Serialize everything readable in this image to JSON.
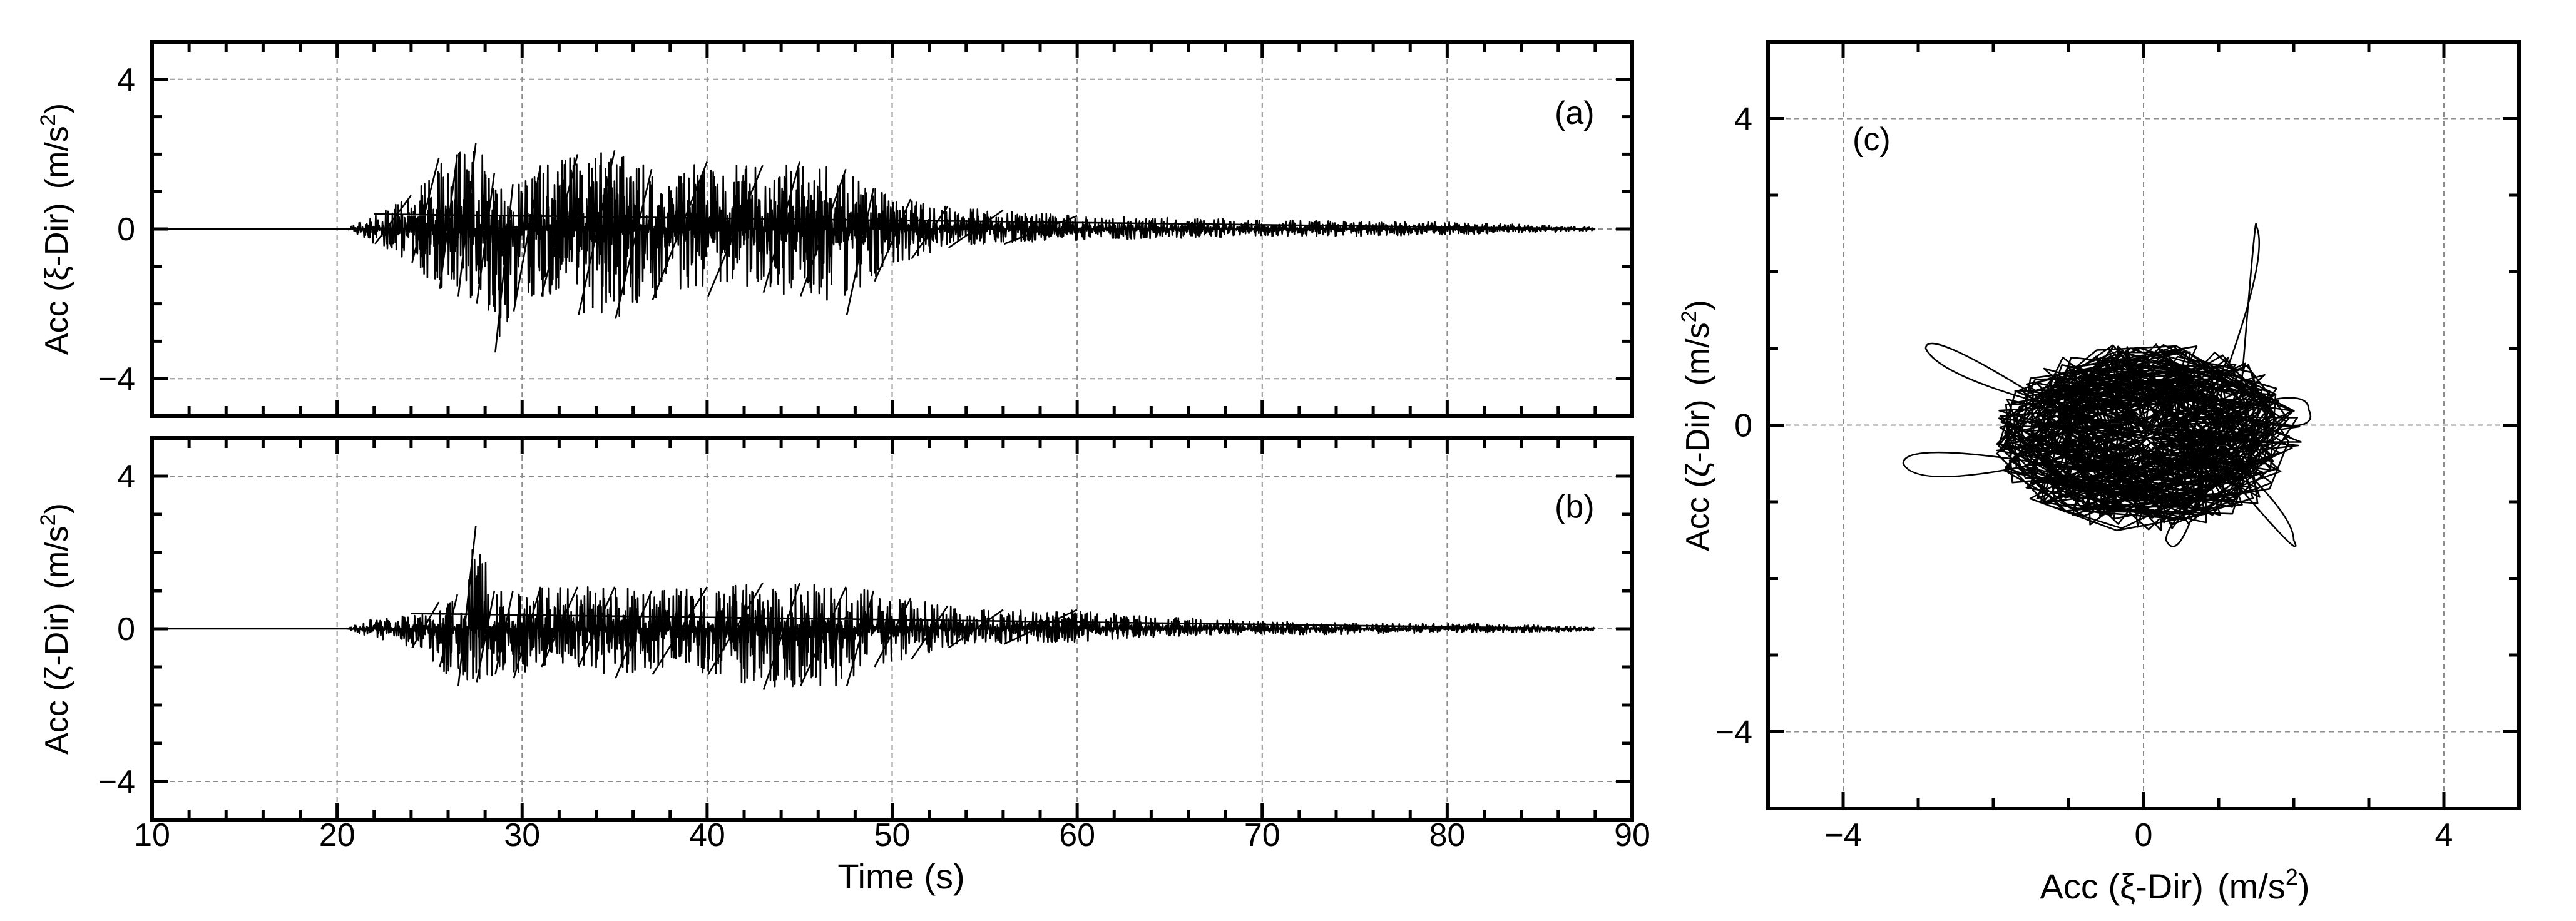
{
  "chart_data": [
    {
      "type": "line",
      "panel_label": "(a)",
      "ylabel_main": "Acc (ξ-Dir)",
      "ylabel_unit": "(m/s",
      "ylabel_sup": "2",
      "ylabel_close": ")",
      "xlim": [
        10,
        90
      ],
      "ylim": [
        -5,
        5
      ],
      "yticks": [
        4,
        0,
        -4
      ],
      "ytick_labels": [
        "4",
        "0",
        "−4"
      ],
      "grid": true,
      "envelope": {
        "t": [
          10,
          20.5,
          22,
          24,
          25.5,
          26.5,
          27.5,
          28.5,
          29.5,
          31,
          33,
          35,
          37,
          40,
          43,
          45,
          47.5,
          49,
          51,
          53,
          56,
          60,
          65,
          70,
          75,
          80,
          85,
          88
        ],
        "upper": [
          0,
          0,
          0.4,
          0.9,
          1.9,
          2.0,
          2.3,
          1.5,
          1.2,
          1.7,
          2.0,
          2.1,
          1.6,
          1.8,
          1.7,
          1.8,
          1.6,
          1.1,
          0.8,
          0.6,
          0.5,
          0.35,
          0.3,
          0.25,
          0.2,
          0.2,
          0.1,
          0.05
        ],
        "lower": [
          0,
          0,
          -0.4,
          -0.9,
          -1.6,
          -1.8,
          -2.0,
          -3.3,
          -2.2,
          -1.8,
          -2.3,
          -2.4,
          -1.9,
          -1.8,
          -1.7,
          -1.8,
          -2.3,
          -1.4,
          -0.8,
          -0.5,
          -0.4,
          -0.3,
          -0.25,
          -0.2,
          -0.2,
          -0.15,
          -0.1,
          -0.05
        ]
      }
    },
    {
      "type": "line",
      "panel_label": "(b)",
      "ylabel_main": "Acc (ζ-Dir)",
      "ylabel_unit": "(m/s",
      "ylabel_sup": "2",
      "ylabel_close": ")",
      "xlabel": "Time (s)",
      "xlim": [
        10,
        90
      ],
      "ylim": [
        -5,
        5
      ],
      "xticks": [
        10,
        20,
        30,
        40,
        50,
        60,
        70,
        80,
        90
      ],
      "xtick_labels": [
        "10",
        "20",
        "30",
        "40",
        "50",
        "60",
        "70",
        "80",
        "90"
      ],
      "yticks": [
        4,
        0,
        -4
      ],
      "ytick_labels": [
        "4",
        "0",
        "−4"
      ],
      "grid": true,
      "envelope": {
        "t": [
          10,
          20.5,
          22,
          24,
          25.5,
          26.5,
          27.5,
          28.5,
          29.5,
          31,
          33,
          35,
          37,
          40,
          43,
          45,
          47.5,
          49,
          51,
          53,
          56,
          60,
          65,
          70,
          75,
          80,
          85,
          88
        ],
        "upper": [
          0,
          0,
          0.3,
          0.4,
          0.7,
          0.9,
          2.7,
          1.0,
          1.0,
          1.1,
          1.1,
          1.1,
          1.0,
          1.1,
          1.2,
          1.2,
          1.1,
          1.0,
          0.8,
          0.6,
          0.5,
          0.5,
          0.3,
          0.2,
          0.15,
          0.15,
          0.1,
          0.05
        ],
        "lower": [
          0,
          0,
          -0.3,
          -0.5,
          -1.0,
          -1.5,
          -1.4,
          -1.2,
          -1.3,
          -1.0,
          -1.0,
          -1.3,
          -1.2,
          -1.2,
          -1.6,
          -1.5,
          -1.5,
          -1.0,
          -0.8,
          -0.5,
          -0.4,
          -0.35,
          -0.2,
          -0.15,
          -0.15,
          -0.1,
          -0.1,
          -0.05
        ]
      }
    },
    {
      "type": "scatter",
      "panel_label": "(c)",
      "xlabel_main": "Acc (ξ-Dir)",
      "ylabel_main": "Acc (ζ-Dir)",
      "unit": "(m/s",
      "unit_sup": "2",
      "unit_close": ")",
      "xlim": [
        -5,
        5
      ],
      "ylim": [
        -5,
        5
      ],
      "xticks": [
        -4,
        0,
        4
      ],
      "xtick_labels": [
        "−4",
        "0",
        "4"
      ],
      "yticks": [
        4,
        0,
        -4
      ],
      "ytick_labels": [
        "4",
        "0",
        "−4"
      ],
      "grid": true,
      "orbit_extent": {
        "core_x": [
          -2.0,
          2.1
        ],
        "core_y": [
          -1.4,
          1.1
        ],
        "excursion_points": [
          [
            -2.9,
            1.0
          ],
          [
            -3.2,
            -0.5
          ],
          [
            1.5,
            2.6
          ],
          [
            2.2,
            0.2
          ],
          [
            2.0,
            -1.5
          ],
          [
            0.3,
            -1.5
          ]
        ]
      }
    }
  ]
}
